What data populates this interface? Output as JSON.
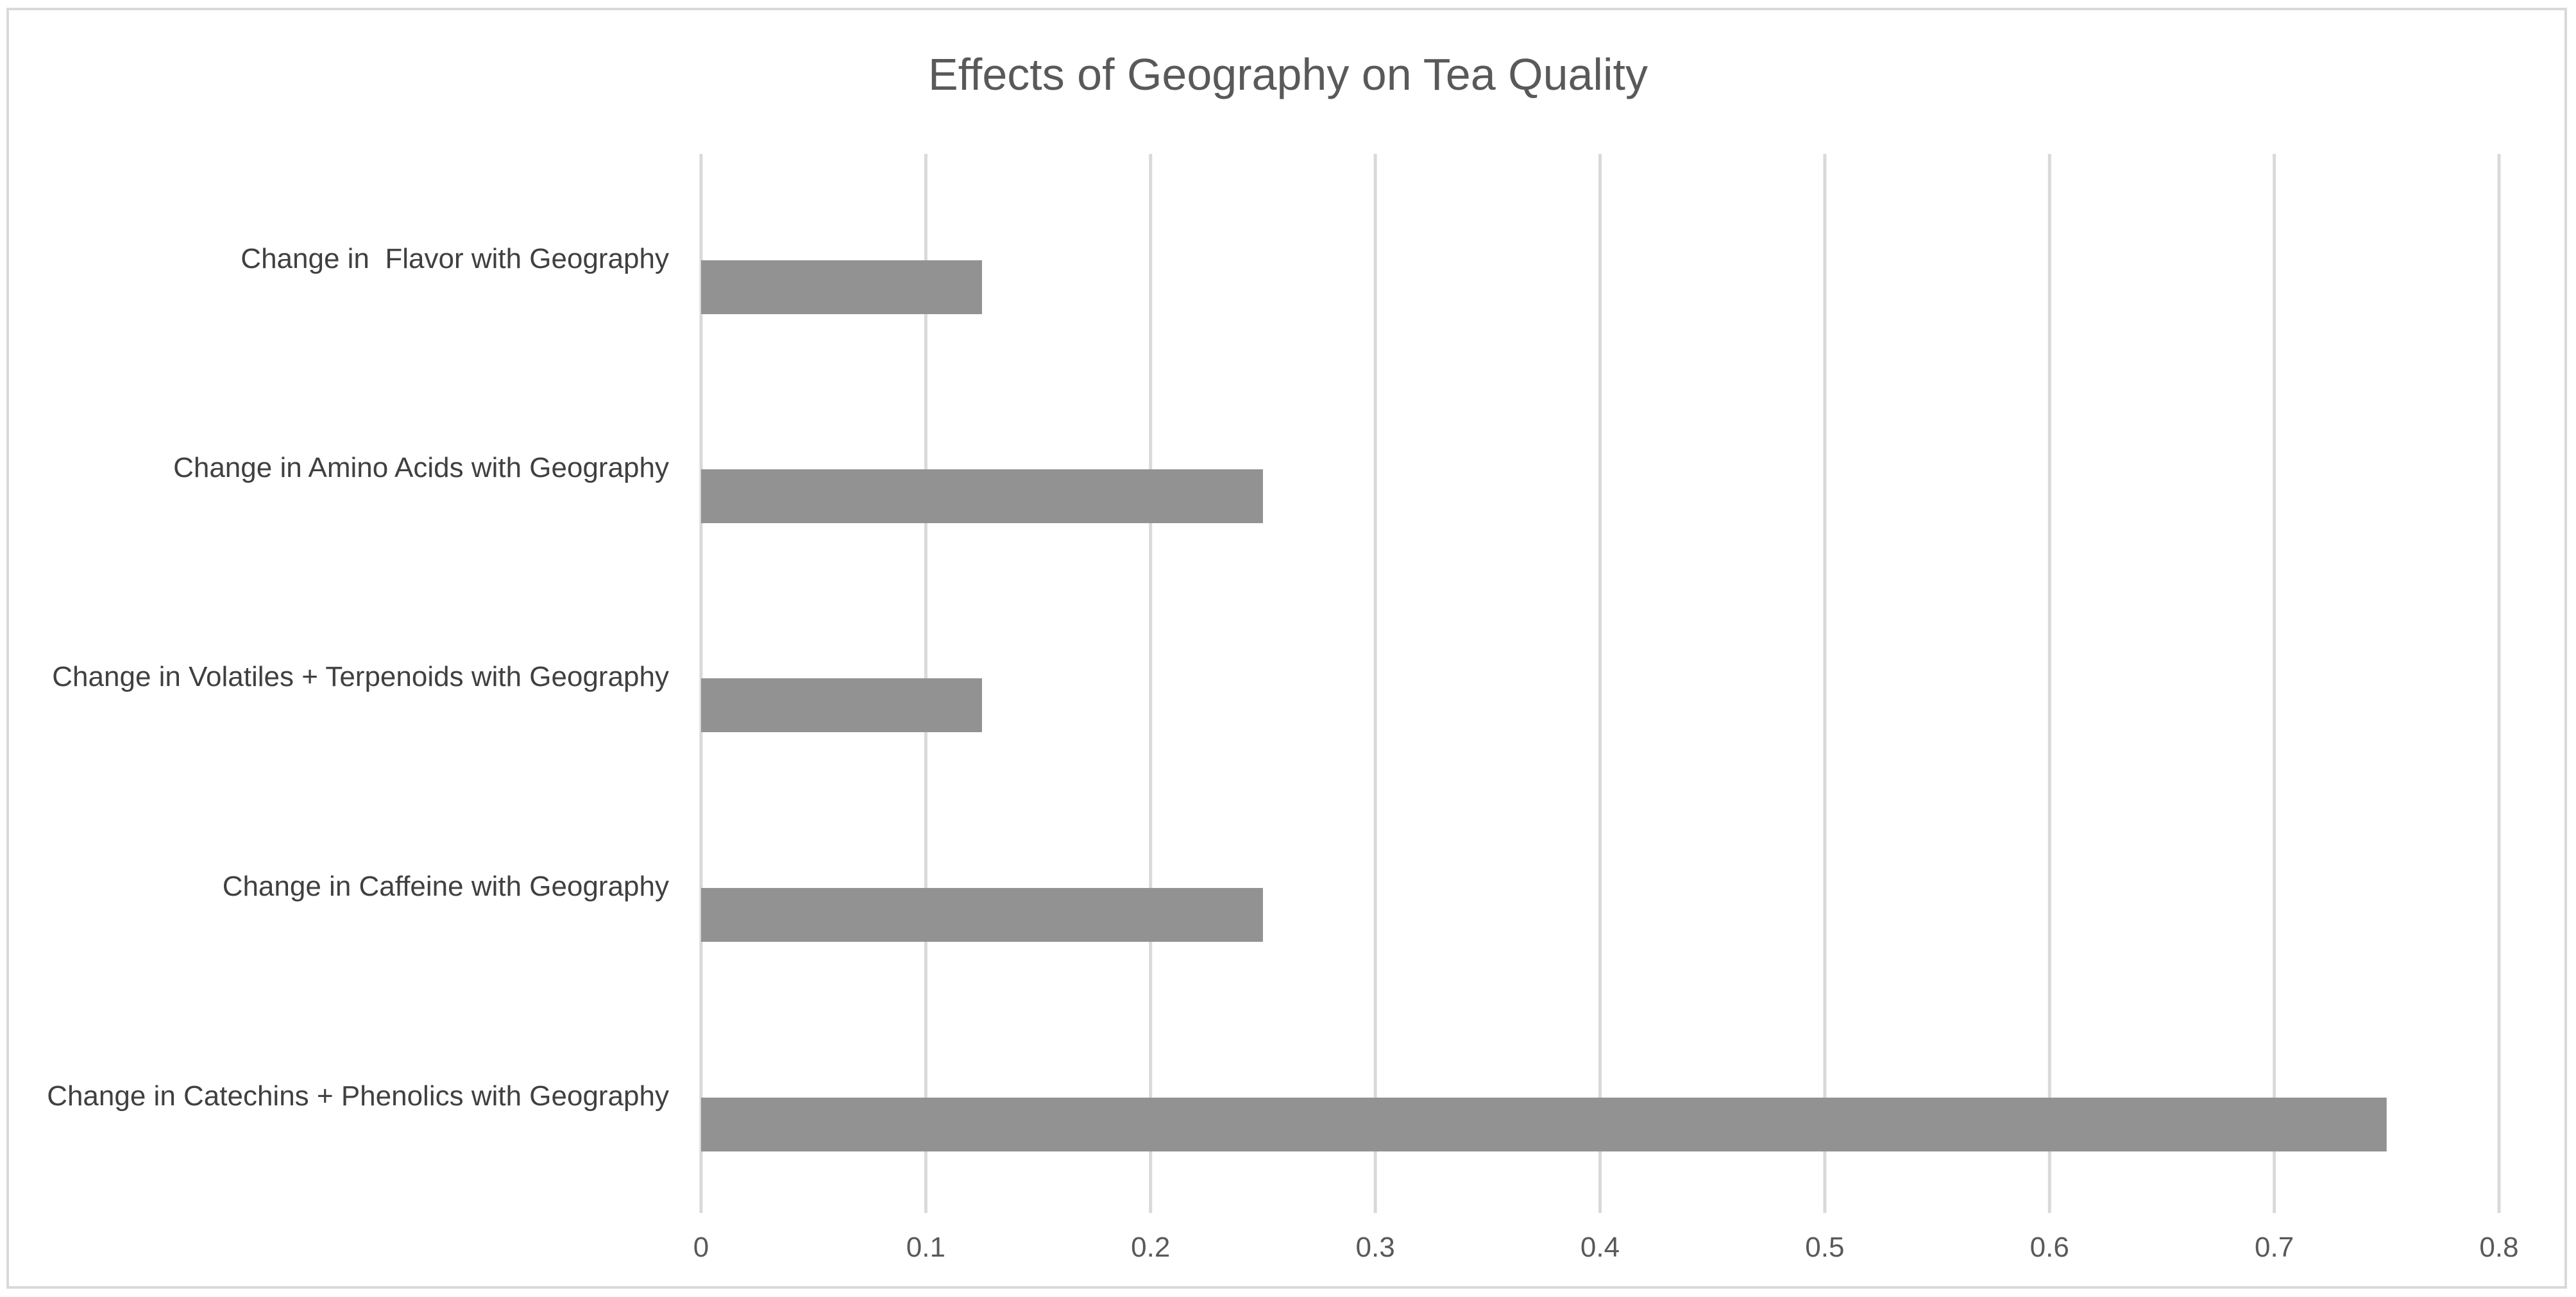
{
  "chart_data": {
    "type": "bar",
    "orientation": "horizontal",
    "title": "Effects of Geography on Tea Quality",
    "categories": [
      "Change in  Flavor with Geography",
      "Change in Amino Acids with Geography",
      "Change in Volatiles + Terpenoids with Geography",
      "Change in Caffeine with Geography",
      "Change in Catechins + Phenolics with Geography"
    ],
    "values": [
      0.125,
      0.25,
      0.125,
      0.25,
      0.75
    ],
    "xlim": [
      0,
      0.8
    ],
    "xticks": [
      "0",
      "0.1",
      "0.2",
      "0.3",
      "0.4",
      "0.5",
      "0.6",
      "0.7",
      "0.8"
    ],
    "grid": true,
    "legend": "none",
    "bar_color": "#929292",
    "grid_color": "#d9d9d9"
  }
}
